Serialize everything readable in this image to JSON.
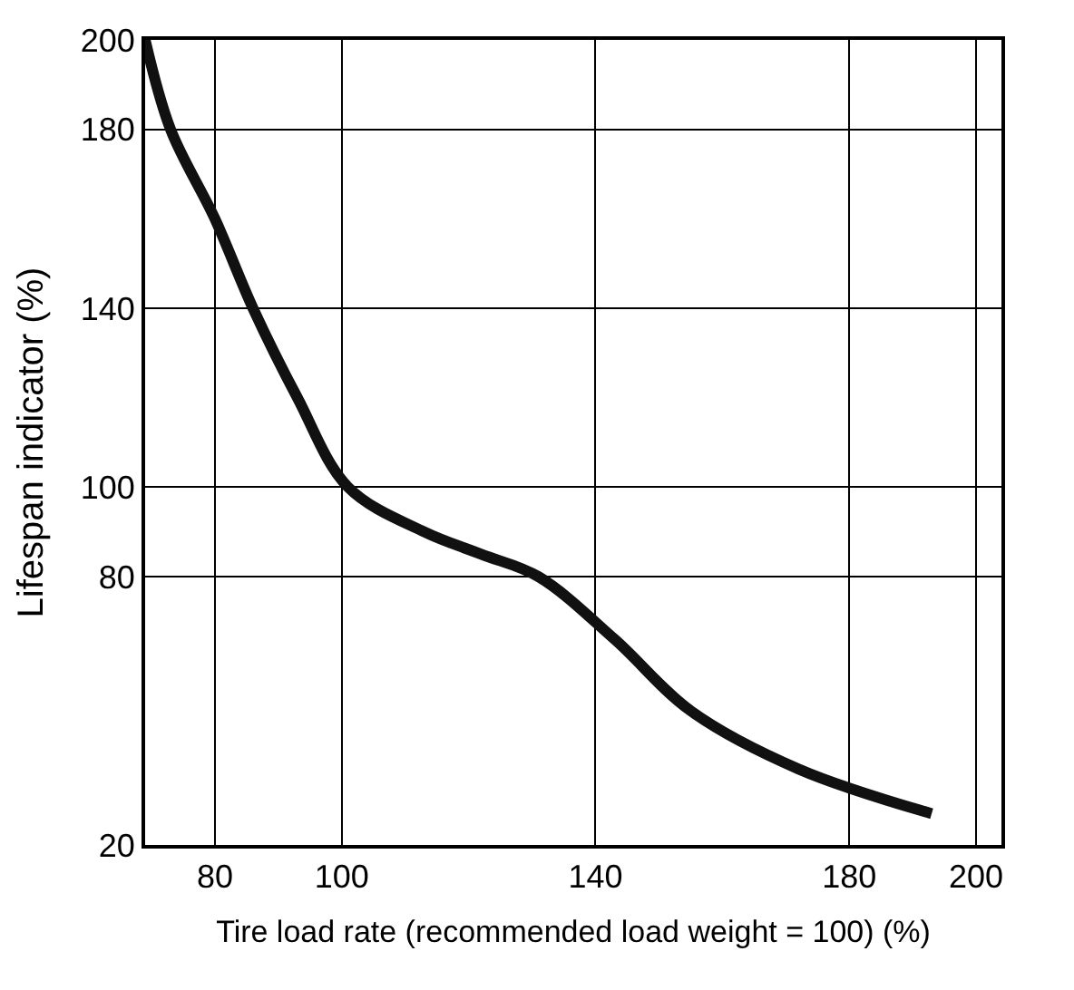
{
  "chart_data": {
    "type": "line",
    "xlabel": "Tire load rate (recommended load weight = 100) (%)",
    "ylabel": "Lifespan indicator (%)",
    "x": [
      69,
      73,
      80,
      86,
      93,
      101,
      113,
      122,
      131,
      143,
      155,
      172,
      193
    ],
    "series": [
      {
        "color": "#111111",
        "values": [
          200,
          180,
          160,
          140,
          120,
          100,
          90,
          85,
          80,
          66,
          50,
          37,
          27
        ]
      }
    ],
    "xlim": [
      69,
      204
    ],
    "xticks": [
      80,
      100,
      140,
      180,
      200
    ],
    "ylim": [
      20,
      200
    ],
    "yticks": [
      20,
      80,
      100,
      140,
      180,
      200
    ],
    "grid": true,
    "marker": "none",
    "line_style": "solid"
  }
}
